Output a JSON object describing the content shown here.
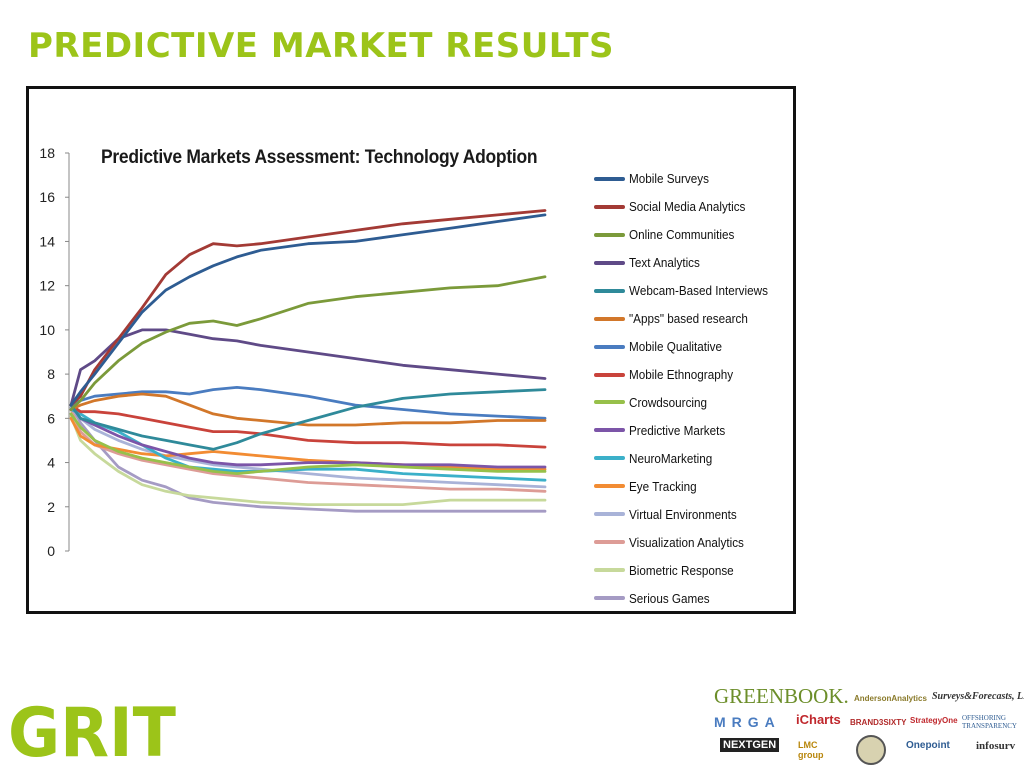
{
  "slide": {
    "title": "PREDICTIVE MARKET RESULTS",
    "accent_color": "#9cc419",
    "logo_text": "GRIT"
  },
  "sponsors": [
    {
      "name": "GreenBook",
      "text": "GREENBOOK."
    },
    {
      "name": "Anderson Analytics",
      "text": "AndersonAnalytics"
    },
    {
      "name": "Surveys & Forecasts, LLC",
      "text": "Surveys&Forecasts, LLC"
    },
    {
      "name": "MRGA",
      "text": "MRGA"
    },
    {
      "name": "iCharts",
      "text": "iCharts"
    },
    {
      "name": "Brand3Sixty",
      "text": "BRAND3SIXTY"
    },
    {
      "name": "StrategyOne",
      "text": "StrategyOne"
    },
    {
      "name": "Offshoring Transparency",
      "text": "OFFSHORING TRANSPARENCY"
    },
    {
      "name": "NextGen Market Research",
      "text": "NEXTGEN"
    },
    {
      "name": "LMC Group",
      "text": "LMC group"
    },
    {
      "name": "OnePoint",
      "text": "Onepoint"
    },
    {
      "name": "infosurv",
      "text": "infosurv"
    }
  ],
  "chart_data": {
    "type": "line",
    "title": "Predictive Markets Assessment: Technology Adoption",
    "xlabel": "",
    "ylabel": "",
    "ylim": [
      0,
      18
    ],
    "yticks": [
      "0",
      "2",
      "4",
      "6",
      "8",
      "10",
      "12",
      "14",
      "16",
      "18"
    ],
    "grid": false,
    "legend_position": "right",
    "x": [
      0,
      0.02,
      0.05,
      0.1,
      0.15,
      0.2,
      0.25,
      0.3,
      0.35,
      0.4,
      0.5,
      0.6,
      0.7,
      0.8,
      0.9,
      1.0
    ],
    "series": [
      {
        "name": "Mobile Surveys",
        "color": "#2e5c92",
        "values": [
          6.6,
          7.2,
          8.0,
          9.4,
          10.8,
          11.8,
          12.4,
          12.9,
          13.3,
          13.6,
          13.9,
          14.0,
          14.3,
          14.6,
          14.9,
          15.2
        ]
      },
      {
        "name": "Social Media Analytics",
        "color": "#a33a35",
        "values": [
          6.6,
          7.0,
          8.2,
          9.6,
          11.0,
          12.5,
          13.4,
          13.9,
          13.8,
          13.9,
          14.2,
          14.5,
          14.8,
          15.0,
          15.2,
          15.4
        ]
      },
      {
        "name": "Online Communities",
        "color": "#7b9a3a",
        "values": [
          6.4,
          6.8,
          7.6,
          8.6,
          9.4,
          9.9,
          10.3,
          10.4,
          10.2,
          10.5,
          11.2,
          11.5,
          11.7,
          11.9,
          12.0,
          12.4
        ]
      },
      {
        "name": "Text Analytics",
        "color": "#5f4a87",
        "values": [
          6.6,
          8.2,
          8.6,
          9.6,
          10.0,
          10.0,
          9.8,
          9.6,
          9.5,
          9.3,
          9.0,
          8.7,
          8.4,
          8.2,
          8.0,
          7.8
        ]
      },
      {
        "name": "Webcam-Based Interviews",
        "color": "#2f8a9a",
        "values": [
          6.6,
          6.0,
          5.8,
          5.5,
          5.2,
          5.0,
          4.8,
          4.6,
          4.9,
          5.3,
          5.9,
          6.5,
          6.9,
          7.1,
          7.2,
          7.3
        ]
      },
      {
        "name": "\"Apps\" based research",
        "color": "#d2772a",
        "values": [
          6.4,
          6.6,
          6.8,
          7.0,
          7.1,
          7.0,
          6.6,
          6.2,
          6.0,
          5.9,
          5.7,
          5.7,
          5.8,
          5.8,
          5.9,
          5.9
        ]
      },
      {
        "name": "Mobile Qualitative",
        "color": "#4a7cc0",
        "values": [
          6.6,
          6.8,
          7.0,
          7.1,
          7.2,
          7.2,
          7.1,
          7.3,
          7.4,
          7.3,
          7.0,
          6.6,
          6.4,
          6.2,
          6.1,
          6.0
        ]
      },
      {
        "name": "Mobile Ethnography",
        "color": "#c9433b",
        "values": [
          6.6,
          6.3,
          6.3,
          6.2,
          6.0,
          5.8,
          5.6,
          5.4,
          5.4,
          5.3,
          5.0,
          4.9,
          4.9,
          4.8,
          4.8,
          4.7
        ]
      },
      {
        "name": "Crowdsourcing",
        "color": "#97c04a",
        "values": [
          6.2,
          5.6,
          5.0,
          4.5,
          4.2,
          4.0,
          3.8,
          3.6,
          3.5,
          3.6,
          3.8,
          3.9,
          3.8,
          3.7,
          3.6,
          3.6
        ]
      },
      {
        "name": "Predictive Markets",
        "color": "#7c55a8",
        "values": [
          6.6,
          6.0,
          5.7,
          5.2,
          4.8,
          4.5,
          4.2,
          4.0,
          3.9,
          3.9,
          4.0,
          4.0,
          3.9,
          3.9,
          3.8,
          3.8
        ]
      },
      {
        "name": "NeuroMarketing",
        "color": "#3bb0c9",
        "values": [
          6.4,
          6.2,
          5.8,
          5.4,
          4.8,
          4.2,
          3.8,
          3.7,
          3.6,
          3.6,
          3.7,
          3.7,
          3.5,
          3.4,
          3.3,
          3.2
        ]
      },
      {
        "name": "Eye Tracking",
        "color": "#f28c33",
        "values": [
          6.0,
          5.2,
          4.8,
          4.6,
          4.4,
          4.3,
          4.4,
          4.5,
          4.4,
          4.3,
          4.1,
          4.0,
          3.9,
          3.8,
          3.7,
          3.7
        ]
      },
      {
        "name": "Virtual Environments",
        "color": "#a9b3d8",
        "values": [
          6.5,
          6.0,
          5.5,
          5.0,
          4.6,
          4.3,
          4.1,
          3.9,
          3.8,
          3.7,
          3.5,
          3.3,
          3.2,
          3.1,
          3.0,
          2.9
        ]
      },
      {
        "name": "Visualization Analytics",
        "color": "#dd9c96",
        "values": [
          6.4,
          5.4,
          4.8,
          4.4,
          4.1,
          3.9,
          3.7,
          3.5,
          3.4,
          3.3,
          3.1,
          3.0,
          2.9,
          2.8,
          2.8,
          2.7
        ]
      },
      {
        "name": "Biometric Response",
        "color": "#c7d99b",
        "values": [
          6.1,
          5.0,
          4.4,
          3.6,
          3.0,
          2.7,
          2.5,
          2.4,
          2.3,
          2.2,
          2.1,
          2.1,
          2.1,
          2.3,
          2.3,
          2.3
        ]
      },
      {
        "name": "Serious Games",
        "color": "#a59bc4",
        "values": [
          6.6,
          5.8,
          5.0,
          3.8,
          3.2,
          2.9,
          2.4,
          2.2,
          2.1,
          2.0,
          1.9,
          1.8,
          1.8,
          1.8,
          1.8,
          1.8
        ]
      }
    ]
  }
}
